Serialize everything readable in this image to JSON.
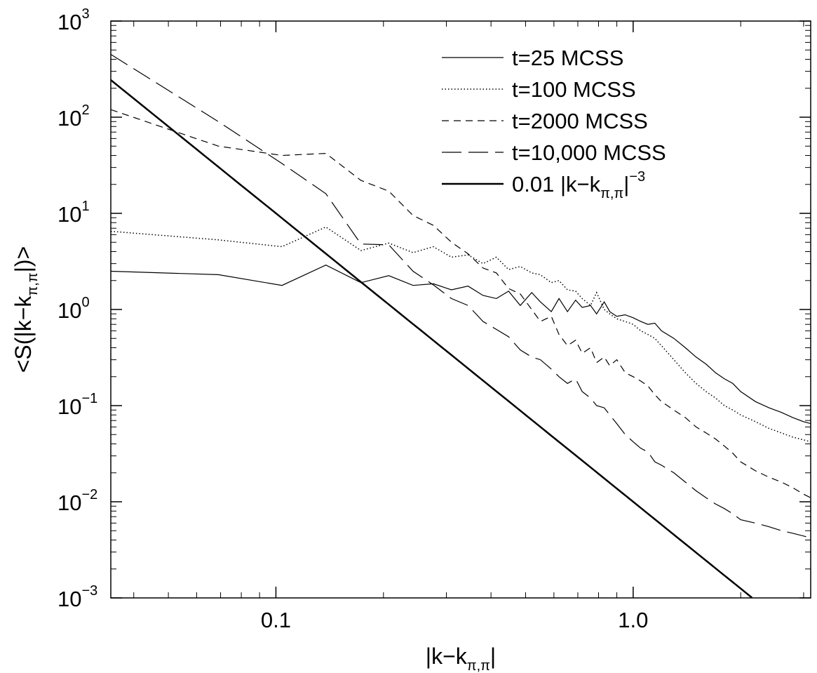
{
  "chart_data": {
    "type": "line",
    "xlabel": "|k−k",
    "xlabel_sub": "π,π",
    "xlabel_end": "|",
    "ylabel": "<S(|k−k",
    "ylabel_sub": "π,π",
    "ylabel_end": "|)>",
    "x_scale": "log",
    "y_scale": "log",
    "xlim": [
      0.0345,
      3.14
    ],
    "ylim": [
      0.001,
      1000
    ],
    "grid": false,
    "legend_position": "top-right",
    "x_ticks": [
      {
        "value": 0.1,
        "label": "0.1"
      },
      {
        "value": 1.0,
        "label": "1.0"
      }
    ],
    "y_ticks": [
      {
        "value": 0.001,
        "base": "10",
        "exp": "−3"
      },
      {
        "value": 0.01,
        "base": "10",
        "exp": "−2"
      },
      {
        "value": 0.1,
        "base": "10",
        "exp": "−1"
      },
      {
        "value": 1,
        "base": "10",
        "exp": "0"
      },
      {
        "value": 10,
        "base": "10",
        "exp": "1"
      },
      {
        "value": 100,
        "base": "10",
        "exp": "2"
      },
      {
        "value": 1000,
        "base": "10",
        "exp": "3"
      }
    ],
    "series": [
      {
        "name": "t=25 MCSS",
        "style": "solid-thin",
        "x": [
          0.0345,
          0.069,
          0.104,
          0.138,
          0.173,
          0.207,
          0.242,
          0.276,
          0.31,
          0.345,
          0.38,
          0.414,
          0.448,
          0.483,
          0.52,
          0.55,
          0.59,
          0.62,
          0.655,
          0.69,
          0.72,
          0.76,
          0.79,
          0.83,
          0.86,
          0.9,
          0.95,
          1.0,
          1.05,
          1.1,
          1.15,
          1.2,
          1.3,
          1.4,
          1.5,
          1.6,
          1.7,
          1.8,
          1.9,
          2.0,
          2.2,
          2.4,
          2.6,
          2.8,
          3.0,
          3.14
        ],
        "y": [
          2.5,
          2.3,
          1.78,
          2.9,
          1.9,
          2.25,
          1.78,
          1.85,
          1.6,
          1.75,
          1.4,
          1.3,
          1.55,
          1.1,
          1.5,
          1.2,
          0.95,
          1.3,
          0.95,
          1.25,
          1.05,
          1.1,
          0.9,
          1.2,
          0.95,
          0.85,
          0.88,
          0.82,
          0.75,
          0.7,
          0.72,
          0.6,
          0.5,
          0.4,
          0.32,
          0.27,
          0.22,
          0.19,
          0.17,
          0.14,
          0.11,
          0.095,
          0.085,
          0.075,
          0.068,
          0.065
        ]
      },
      {
        "name": "t=100 MCSS",
        "style": "dotted",
        "x": [
          0.0345,
          0.069,
          0.104,
          0.138,
          0.173,
          0.207,
          0.242,
          0.276,
          0.31,
          0.345,
          0.38,
          0.414,
          0.448,
          0.483,
          0.52,
          0.55,
          0.59,
          0.62,
          0.655,
          0.69,
          0.72,
          0.76,
          0.79,
          0.83,
          0.86,
          0.9,
          0.95,
          1.0,
          1.05,
          1.1,
          1.15,
          1.2,
          1.3,
          1.4,
          1.5,
          1.6,
          1.7,
          1.8,
          1.9,
          2.0,
          2.2,
          2.4,
          2.6,
          2.8,
          3.0,
          3.14
        ],
        "y": [
          6.5,
          5.3,
          4.5,
          7.2,
          4.1,
          4.9,
          3.9,
          4.5,
          3.5,
          3.7,
          3.0,
          3.5,
          2.6,
          2.8,
          2.4,
          2.3,
          1.9,
          2.0,
          1.6,
          1.55,
          1.3,
          1.1,
          1.5,
          1.0,
          0.9,
          0.8,
          0.75,
          0.7,
          0.6,
          0.55,
          0.5,
          0.42,
          0.3,
          0.22,
          0.17,
          0.14,
          0.12,
          0.1,
          0.09,
          0.08,
          0.068,
          0.058,
          0.052,
          0.047,
          0.044,
          0.042
        ]
      },
      {
        "name": "t=2000 MCSS",
        "style": "dashed-short",
        "x": [
          0.0345,
          0.069,
          0.104,
          0.138,
          0.173,
          0.207,
          0.242,
          0.276,
          0.31,
          0.345,
          0.38,
          0.414,
          0.448,
          0.483,
          0.52,
          0.55,
          0.59,
          0.62,
          0.655,
          0.69,
          0.72,
          0.76,
          0.79,
          0.83,
          0.86,
          0.9,
          0.95,
          1.0,
          1.05,
          1.1,
          1.15,
          1.2,
          1.3,
          1.4,
          1.5,
          1.6,
          1.7,
          1.8,
          1.9,
          2.0,
          2.2,
          2.4,
          2.6,
          2.8,
          3.0,
          3.14
        ],
        "y": [
          120,
          50,
          40,
          42,
          22,
          17,
          9.5,
          7.5,
          5.0,
          3.8,
          2.7,
          2.4,
          1.65,
          1.45,
          1.0,
          0.75,
          0.85,
          0.55,
          0.42,
          0.48,
          0.35,
          0.4,
          0.28,
          0.32,
          0.26,
          0.3,
          0.22,
          0.2,
          0.18,
          0.16,
          0.13,
          0.11,
          0.09,
          0.075,
          0.06,
          0.052,
          0.045,
          0.038,
          0.032,
          0.026,
          0.021,
          0.018,
          0.016,
          0.014,
          0.012,
          0.011
        ]
      },
      {
        "name": "t=10,000 MCSS",
        "style": "dashed-long",
        "x": [
          0.0345,
          0.069,
          0.104,
          0.138,
          0.173,
          0.207,
          0.242,
          0.276,
          0.31,
          0.345,
          0.38,
          0.414,
          0.448,
          0.483,
          0.52,
          0.55,
          0.59,
          0.62,
          0.655,
          0.69,
          0.72,
          0.76,
          0.79,
          0.83,
          0.86,
          0.9,
          0.95,
          1.0,
          1.05,
          1.1,
          1.15,
          1.2,
          1.3,
          1.4,
          1.5,
          1.6,
          1.7,
          1.8,
          1.9,
          2.0,
          2.2,
          2.4,
          2.6,
          2.8,
          3.0,
          3.14
        ],
        "y": [
          450,
          90,
          33,
          16,
          4.8,
          4.7,
          2.5,
          1.8,
          1.3,
          1.1,
          0.75,
          0.62,
          0.52,
          0.38,
          0.32,
          0.3,
          0.24,
          0.2,
          0.17,
          0.19,
          0.14,
          0.12,
          0.1,
          0.095,
          0.08,
          0.065,
          0.05,
          0.042,
          0.036,
          0.033,
          0.026,
          0.024,
          0.02,
          0.016,
          0.013,
          0.011,
          0.0095,
          0.0085,
          0.0075,
          0.0065,
          0.006,
          0.0055,
          0.005,
          0.0047,
          0.0044,
          0.0042
        ]
      },
      {
        "name_prefix": "0.01 |k−k",
        "name_sub": "π,π",
        "name_mid": "|",
        "name_sup": "−3",
        "style": "solid-thick",
        "formula": {
          "coefficient": 0.01,
          "power": -3
        },
        "x_range": [
          0.0345,
          2.15
        ]
      }
    ]
  }
}
